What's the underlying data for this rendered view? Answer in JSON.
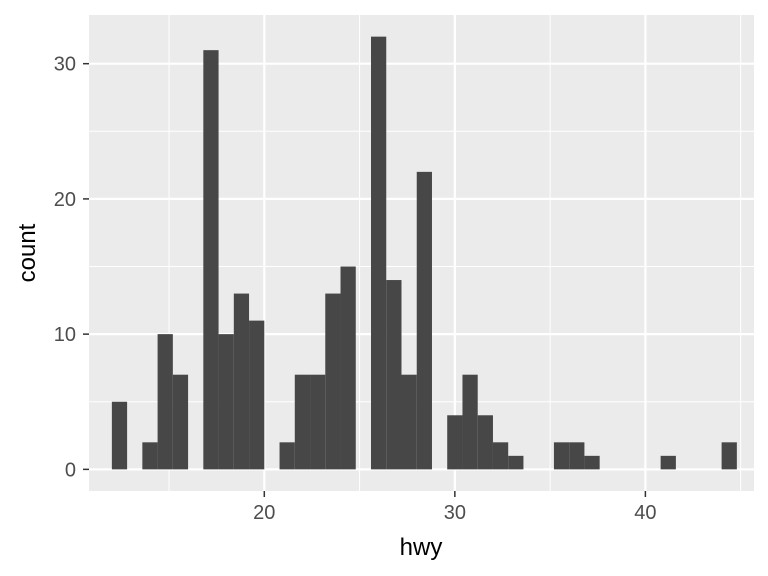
{
  "chart_data": {
    "type": "bar",
    "xlabel": "hwy",
    "ylabel": "count",
    "xlim": [
      10.8,
      45.7
    ],
    "ylim": [
      -1.6,
      33.6
    ],
    "bin_width": 0.8,
    "bins": [
      {
        "x": 12.4,
        "count": 5
      },
      {
        "x": 14.0,
        "count": 2
      },
      {
        "x": 14.8,
        "count": 10
      },
      {
        "x": 15.6,
        "count": 7
      },
      {
        "x": 17.2,
        "count": 31
      },
      {
        "x": 18.0,
        "count": 10
      },
      {
        "x": 18.8,
        "count": 13
      },
      {
        "x": 19.6,
        "count": 11
      },
      {
        "x": 21.2,
        "count": 2
      },
      {
        "x": 22.0,
        "count": 7
      },
      {
        "x": 22.8,
        "count": 7
      },
      {
        "x": 23.6,
        "count": 13
      },
      {
        "x": 24.4,
        "count": 15
      },
      {
        "x": 26.0,
        "count": 32
      },
      {
        "x": 26.8,
        "count": 14
      },
      {
        "x": 27.6,
        "count": 7
      },
      {
        "x": 28.4,
        "count": 22
      },
      {
        "x": 30.0,
        "count": 4
      },
      {
        "x": 30.8,
        "count": 7
      },
      {
        "x": 31.6,
        "count": 4
      },
      {
        "x": 32.4,
        "count": 2
      },
      {
        "x": 33.2,
        "count": 1
      },
      {
        "x": 35.6,
        "count": 2
      },
      {
        "x": 36.4,
        "count": 2
      },
      {
        "x": 37.2,
        "count": 1
      },
      {
        "x": 41.2,
        "count": 1
      },
      {
        "x": 44.4,
        "count": 2
      }
    ],
    "x_ticks": [
      20,
      30,
      40
    ],
    "x_tick_labels": [
      "20",
      "30",
      "40"
    ],
    "y_ticks": [
      0,
      10,
      20,
      30
    ],
    "y_tick_labels": [
      "0",
      "10",
      "20",
      "30"
    ],
    "grid": true,
    "colors": {
      "panel": "#ebebeb",
      "grid": "#ffffff",
      "bar": "#474747",
      "tick": "#333333"
    }
  }
}
